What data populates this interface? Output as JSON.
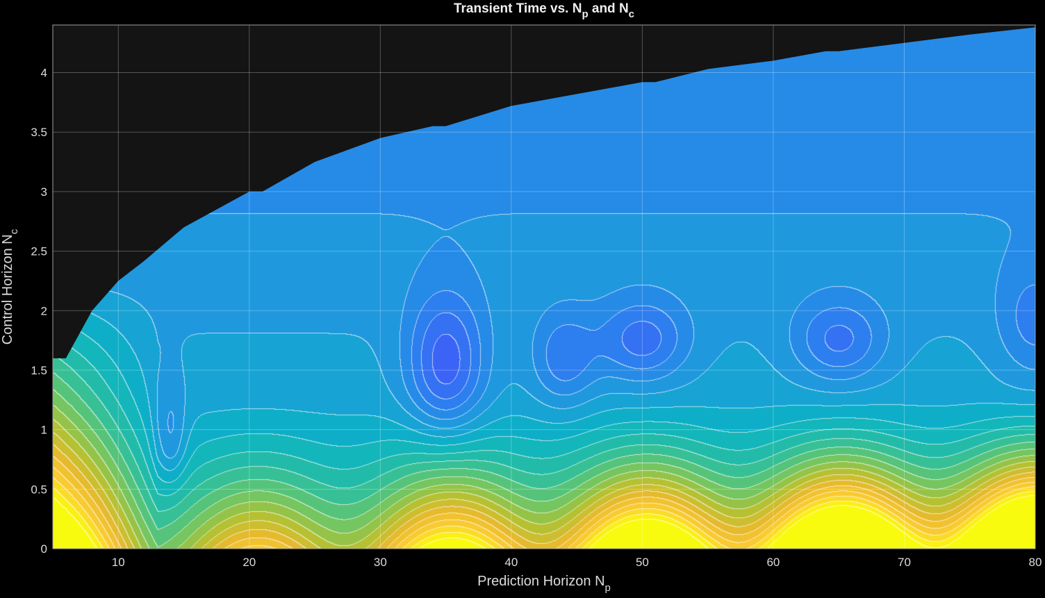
{
  "chart_data": {
    "type": "filled-contour",
    "title_parts": [
      "Transient Time vs. N",
      "p",
      " and N",
      "c"
    ],
    "xlabel_parts": [
      "Prediction Horizon N",
      "p"
    ],
    "ylabel_parts": [
      "Control Horizon N",
      "c"
    ],
    "xlim": [
      5,
      80
    ],
    "ylim": [
      0,
      4.4
    ],
    "xticks": [
      10,
      20,
      30,
      40,
      50,
      60,
      70,
      80
    ],
    "xtick_labels": [
      "10",
      "20",
      "30",
      "40",
      "50",
      "60",
      "70",
      "80"
    ],
    "yticks": [
      0,
      0.5,
      1,
      1.5,
      2,
      2.5,
      3,
      3.5,
      4
    ],
    "ytick_labels": [
      "0",
      "0.5",
      "1",
      "1.5",
      "2",
      "2.5",
      "3",
      "3.5",
      "4"
    ],
    "grid": true,
    "colormap": "parula",
    "colormap_stops": [
      "#3e26a8",
      "#4743e3",
      "#3c62f8",
      "#2d7fef",
      "#1d9bdc",
      "#0bb2c4",
      "#2abfa0",
      "#6ec565",
      "#b4c132",
      "#e9ba2e",
      "#fccd32",
      "#f9fb0e"
    ],
    "no_data_color": "#141414",
    "feasible_boundary": {
      "x": [
        5,
        6,
        8,
        10,
        12,
        15,
        20,
        21,
        25,
        30,
        34,
        35,
        40,
        45,
        50,
        51,
        55,
        60,
        64,
        65,
        70,
        75,
        80
      ],
      "y": [
        1.6,
        1.6,
        2.0,
        2.25,
        2.42,
        2.7,
        3.0,
        3.0,
        3.25,
        3.45,
        3.55,
        3.55,
        3.72,
        3.82,
        3.92,
        3.92,
        4.03,
        4.1,
        4.18,
        4.18,
        4.25,
        4.32,
        4.38
      ]
    },
    "z_lowest_region": [
      {
        "x": 35,
        "y": 1.6
      },
      {
        "x": 50,
        "y": 1.7
      },
      {
        "x": 65,
        "y": 1.75
      }
    ],
    "z_highest_region": [
      {
        "x": 80,
        "y": 0.05
      }
    ]
  },
  "colors": {
    "background": "#000000",
    "grid": "#ffffff",
    "text": "#dcdcdc",
    "contour_line": "#ffffff"
  }
}
